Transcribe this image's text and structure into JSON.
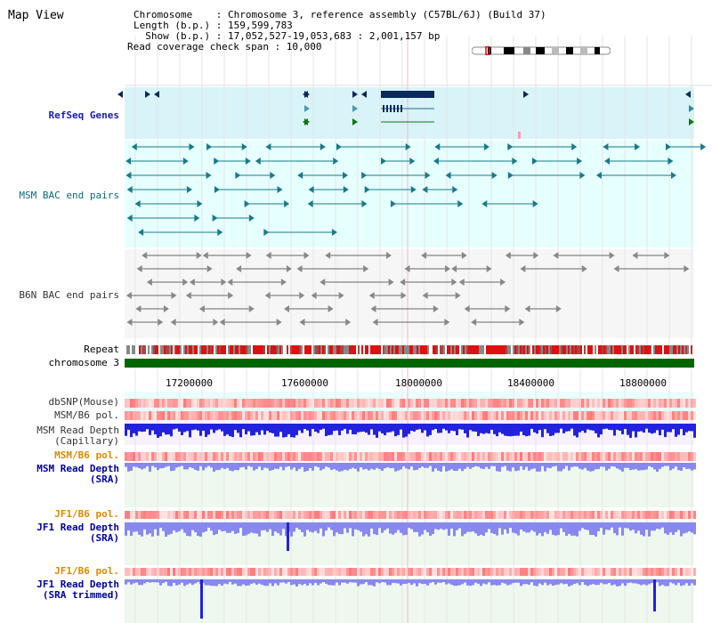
{
  "app": {
    "title": "Map View"
  },
  "info": {
    "line1": "Chromosome    : Chromosome 3, reference assembly (C57BL/6J) (Build 37)",
    "line2": "Length (b.p.) : 159,599,783",
    "line3": "  Show (b.p.) : 17,052,527-19,053,683 : 2,001,157 bp",
    "line4": "Read coverage check span : 10,000"
  },
  "tracks": {
    "refseq": "RefSeq Genes",
    "msm_bac": "MSM BAC end pairs",
    "b6n_bac": "B6N BAC end pairs",
    "repeat": "Repeat",
    "chromosome": "chromosome 3",
    "dbsnp": "dbSNP(Mouse)",
    "msm_pol": "MSM/B6 pol.",
    "msm_depth_cap_1": "MSM Read Depth",
    "msm_depth_cap_2": "(Capillary)",
    "msm_pol2": "MSM/B6 pol.",
    "msm_depth_sra_1": "MSM Read Depth",
    "msm_depth_sra_2": "(SRA)",
    "jf1_pol": "JF1/B6 pol.",
    "jf1_depth_1": "JF1 Read Depth",
    "jf1_depth_2": "(SRA)",
    "jf1_pol2": "JF1/B6 pol.",
    "jf1_trim_1": "JF1 Read Depth",
    "jf1_trim_2": "(SRA trimmed)"
  },
  "axis": {
    "ticks": [
      "17200000",
      "17600000",
      "18000000",
      "18400000",
      "18800000"
    ]
  },
  "colors": {
    "refseq_bg": "#d8f4f8",
    "bac_bg": "#e6ffff",
    "refseq_gene": "#0a2a5a",
    "bac_feature": "#1a7a8a",
    "b6n_feature": "#666666",
    "chromosome_bar": "#006600",
    "depth_blue": "#2222dd",
    "depth_light": "#8888ee"
  }
}
